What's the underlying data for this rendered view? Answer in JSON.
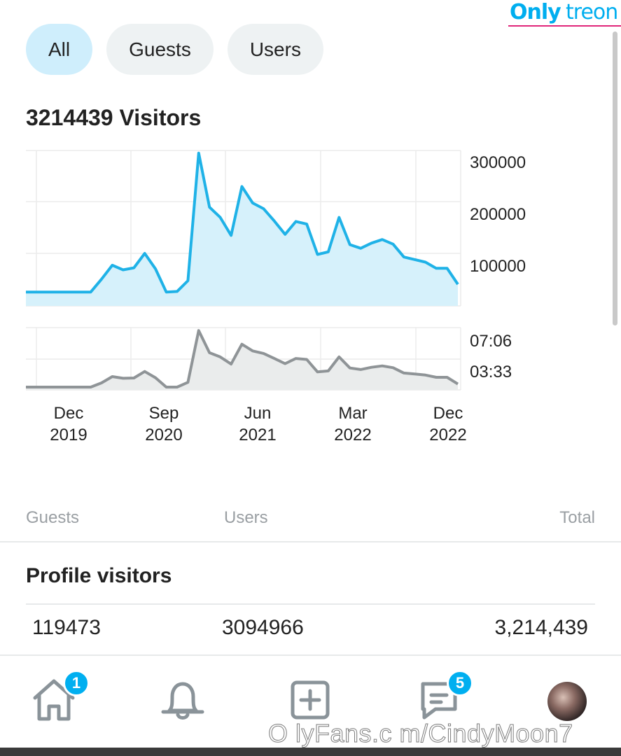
{
  "watermark": {
    "brand_a": "Only",
    "brand_b": "treon",
    "bottom_text": "O lyFans.c m/CindyMoon7"
  },
  "tabs": [
    {
      "label": "All",
      "active": true
    },
    {
      "label": "Guests",
      "active": false
    },
    {
      "label": "Users",
      "active": false
    }
  ],
  "visitors_title": "3214439 Visitors",
  "chart_data": [
    {
      "type": "area",
      "title": "",
      "series": [
        {
          "values": [
            0,
            0,
            0,
            0,
            0,
            0,
            0,
            25000,
            52000,
            43000,
            47000,
            75000,
            45000,
            0,
            1000,
            22000,
            270000,
            165000,
            145000,
            110000,
            205000,
            173000,
            162000,
            138000,
            112000,
            137000,
            132000,
            73000,
            78000,
            145000,
            92000,
            85000,
            95000,
            102000,
            93000,
            68000,
            63000,
            58000,
            46000,
            46000,
            15000
          ]
        }
      ],
      "yticks": [
        "300000",
        "200000",
        "100000"
      ],
      "ylim": [
        -27000,
        275000
      ],
      "grid": true,
      "color": "#1fb2e7",
      "fill": "#d6f1fb"
    },
    {
      "type": "area",
      "title": "",
      "series": [
        {
          "values": [
            0,
            0,
            0,
            0,
            0,
            0,
            0,
            30,
            75,
            63,
            65,
            112,
            67,
            0,
            0,
            34,
            405,
            246,
            216,
            165,
            307,
            259,
            241,
            205,
            168,
            205,
            198,
            109,
            116,
            216,
            137,
            126,
            142,
            152,
            139,
            101,
            94,
            86,
            70,
            70,
            22
          ]
        }
      ],
      "yticks": [
        "07:06",
        "03:33"
      ],
      "ylim": [
        -20,
        426
      ],
      "grid": true,
      "color": "#8f9497",
      "fill": "#eaecec"
    }
  ],
  "xaxis": [
    {
      "month": "Dec",
      "year": "2019"
    },
    {
      "month": "Sep",
      "year": "2020"
    },
    {
      "month": "Jun",
      "year": "2021"
    },
    {
      "month": "Mar",
      "year": "2022"
    },
    {
      "month": "Dec",
      "year": "2022"
    }
  ],
  "table": {
    "columns": [
      "Guests",
      "Users",
      "Total"
    ],
    "section_title": "Profile visitors",
    "values": [
      "119473",
      "3094966",
      "3,214,439"
    ]
  },
  "nav": {
    "home_badge": "1",
    "messages_badge": "5",
    "icons": [
      "home-icon",
      "bell-icon",
      "add-post-icon",
      "chat-icon",
      "avatar"
    ]
  },
  "colors": {
    "accent": "#00aff0",
    "active_tab": "#cfeefc",
    "inactive_tab": "#eef2f3"
  }
}
